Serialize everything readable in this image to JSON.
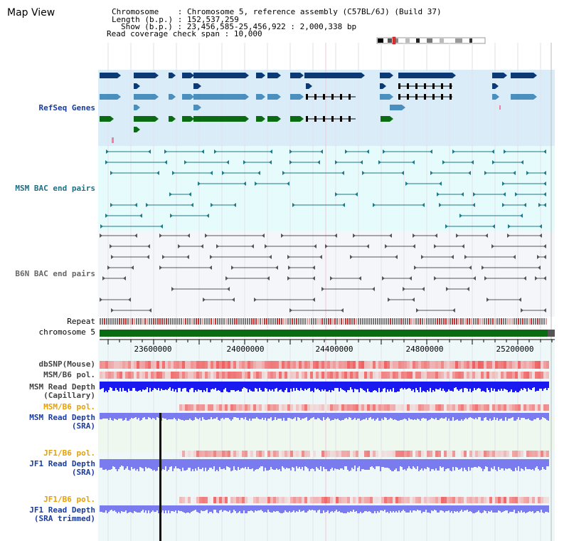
{
  "page": {
    "title": "Map View"
  },
  "header": {
    "chromosome_key": "Chromosome",
    "chromosome_val": "Chromosome 5, reference assembly (C57BL/6J) (Build 37)",
    "length_key": "Length (b.p.)",
    "length_val": "152,537,259",
    "show_key": "Show (b.p.)",
    "show_val": "23,456,585-25,456,922 : 2,000,338 bp",
    "coverage_key": "Read coverage check span",
    "coverage_val": "10,000"
  },
  "tracks": {
    "refseq": "RefSeq Genes",
    "msm_bac": "MSM BAC end pairs",
    "b6n_bac": "B6N BAC end pairs",
    "repeat": "Repeat",
    "chromosome": "chromosome 5",
    "dbsnp": "dbSNP(Mouse)",
    "msm_b6_pol": "MSM/B6 pol.",
    "msm_depth_cap_1": "MSM Read Depth",
    "msm_depth_cap_2": "(Capillary)",
    "msm_b6_pol_2": "MSM/B6 pol.",
    "msm_depth_sra_1": "MSM Read Depth",
    "msm_depth_sra_2": "(SRA)",
    "jf1_pol_1": "JF1/B6 pol.",
    "jf1_depth_sra_1": "JF1 Read Depth",
    "jf1_depth_sra_2": "(SRA)",
    "jf1_pol_2": "JF1/B6 pol.",
    "jf1_depth_trim_1": "JF1 Read Depth",
    "jf1_depth_trim_2": "(SRA trimmed)"
  },
  "axis": {
    "ticks": [
      "23600000",
      "24000000",
      "24400000",
      "24800000",
      "25200000"
    ]
  },
  "colors": {
    "refseq_bg": "#d9ecf8",
    "msm_bac_bg": "#e6fbfb",
    "b6n_bac_bg": "#f5f6fa",
    "lower_bg": "#eef8f8",
    "gene_dark": "#0b3a75",
    "gene_light": "#4a8fbd",
    "gene_green": "#0a6b12",
    "msm_line": "#1f7a8a",
    "b6n_line": "#555555",
    "chromosome_bar": "#0a6b12",
    "red": "#e84040",
    "blue_dark": "#1a1af0",
    "blue_light": "#7b7bf0",
    "msm_label": "#1a3c9c",
    "orange_label": "#e8a000"
  }
}
